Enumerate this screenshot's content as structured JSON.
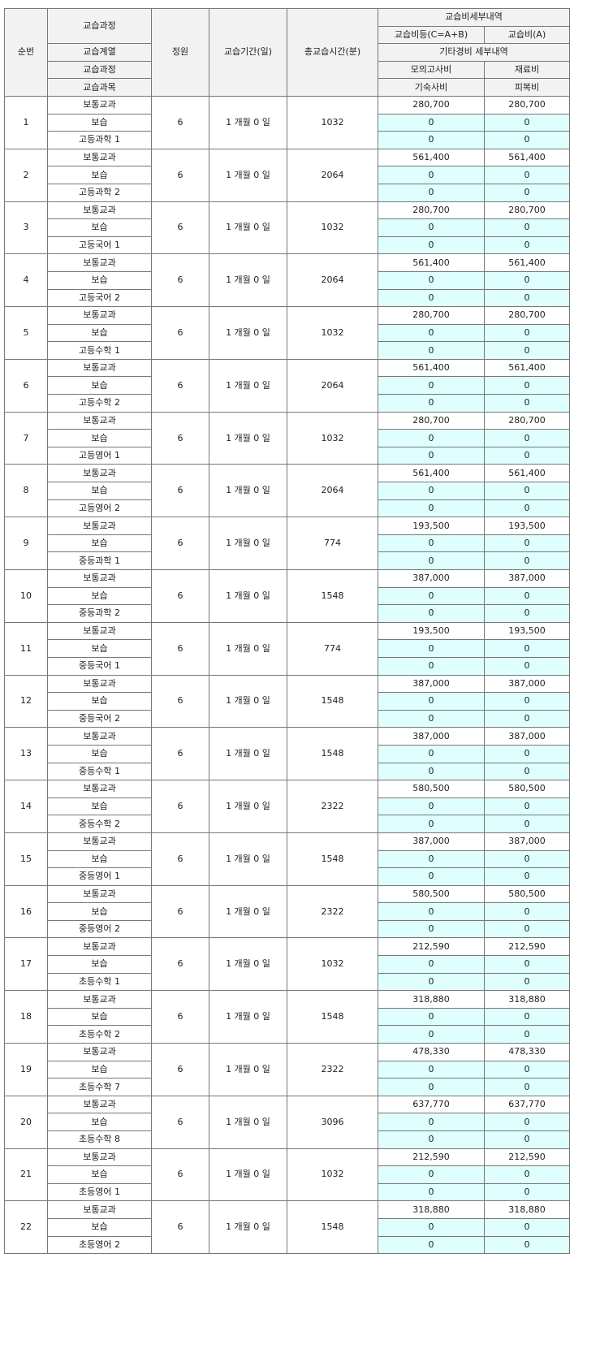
{
  "header": {
    "seq": "순번",
    "course": "교습과정",
    "capacity": "정원",
    "period": "교습기간(일)",
    "total_minutes": "총교습시간(분)",
    "fee_detail": "교습비세부내역",
    "fee_total": "교습비등(C=A+B)",
    "fee_a": "교습비(A)",
    "series": "교습계열",
    "other_detail": "기타경비 세부내역",
    "course2": "교습과정",
    "mock_exam": "모의고사비",
    "material": "재료비",
    "subject": "교습과목",
    "dorm": "기숙사비",
    "uniform": "피복비"
  },
  "colors": {
    "header_bg": "#f2f2f2",
    "zero_cell_bg": "#dfffff",
    "border": "#777777"
  },
  "rows": [
    {
      "no": "1",
      "series": "보통교과",
      "course": "보습",
      "subject": "고등과학 1",
      "cap": "6",
      "period": "1 개월 0 일",
      "minutes": "1032",
      "total": "280,700",
      "a": "280,700",
      "mock": "0",
      "mat": "0",
      "dorm": "0",
      "uni": "0"
    },
    {
      "no": "2",
      "series": "보통교과",
      "course": "보습",
      "subject": "고등과학 2",
      "cap": "6",
      "period": "1 개월 0 일",
      "minutes": "2064",
      "total": "561,400",
      "a": "561,400",
      "mock": "0",
      "mat": "0",
      "dorm": "0",
      "uni": "0"
    },
    {
      "no": "3",
      "series": "보통교과",
      "course": "보습",
      "subject": "고등국어 1",
      "cap": "6",
      "period": "1 개월 0 일",
      "minutes": "1032",
      "total": "280,700",
      "a": "280,700",
      "mock": "0",
      "mat": "0",
      "dorm": "0",
      "uni": "0"
    },
    {
      "no": "4",
      "series": "보통교과",
      "course": "보습",
      "subject": "고등국어 2",
      "cap": "6",
      "period": "1 개월 0 일",
      "minutes": "2064",
      "total": "561,400",
      "a": "561,400",
      "mock": "0",
      "mat": "0",
      "dorm": "0",
      "uni": "0"
    },
    {
      "no": "5",
      "series": "보통교과",
      "course": "보습",
      "subject": "고등수학 1",
      "cap": "6",
      "period": "1 개월 0 일",
      "minutes": "1032",
      "total": "280,700",
      "a": "280,700",
      "mock": "0",
      "mat": "0",
      "dorm": "0",
      "uni": "0"
    },
    {
      "no": "6",
      "series": "보통교과",
      "course": "보습",
      "subject": "고등수학 2",
      "cap": "6",
      "period": "1 개월 0 일",
      "minutes": "2064",
      "total": "561,400",
      "a": "561,400",
      "mock": "0",
      "mat": "0",
      "dorm": "0",
      "uni": "0"
    },
    {
      "no": "7",
      "series": "보통교과",
      "course": "보습",
      "subject": "고등영어 1",
      "cap": "6",
      "period": "1 개월 0 일",
      "minutes": "1032",
      "total": "280,700",
      "a": "280,700",
      "mock": "0",
      "mat": "0",
      "dorm": "0",
      "uni": "0"
    },
    {
      "no": "8",
      "series": "보통교과",
      "course": "보습",
      "subject": "고등영어 2",
      "cap": "6",
      "period": "1 개월 0 일",
      "minutes": "2064",
      "total": "561,400",
      "a": "561,400",
      "mock": "0",
      "mat": "0",
      "dorm": "0",
      "uni": "0"
    },
    {
      "no": "9",
      "series": "보통교과",
      "course": "보습",
      "subject": "중등과학 1",
      "cap": "6",
      "period": "1 개월 0 일",
      "minutes": "774",
      "total": "193,500",
      "a": "193,500",
      "mock": "0",
      "mat": "0",
      "dorm": "0",
      "uni": "0"
    },
    {
      "no": "10",
      "series": "보통교과",
      "course": "보습",
      "subject": "중등과학 2",
      "cap": "6",
      "period": "1 개월 0 일",
      "minutes": "1548",
      "total": "387,000",
      "a": "387,000",
      "mock": "0",
      "mat": "0",
      "dorm": "0",
      "uni": "0"
    },
    {
      "no": "11",
      "series": "보통교과",
      "course": "보습",
      "subject": "중등국어 1",
      "cap": "6",
      "period": "1 개월 0 일",
      "minutes": "774",
      "total": "193,500",
      "a": "193,500",
      "mock": "0",
      "mat": "0",
      "dorm": "0",
      "uni": "0"
    },
    {
      "no": "12",
      "series": "보통교과",
      "course": "보습",
      "subject": "중등국어 2",
      "cap": "6",
      "period": "1 개월 0 일",
      "minutes": "1548",
      "total": "387,000",
      "a": "387,000",
      "mock": "0",
      "mat": "0",
      "dorm": "0",
      "uni": "0"
    },
    {
      "no": "13",
      "series": "보통교과",
      "course": "보습",
      "subject": "중등수학 1",
      "cap": "6",
      "period": "1 개월 0 일",
      "minutes": "1548",
      "total": "387,000",
      "a": "387,000",
      "mock": "0",
      "mat": "0",
      "dorm": "0",
      "uni": "0"
    },
    {
      "no": "14",
      "series": "보통교과",
      "course": "보습",
      "subject": "중등수학 2",
      "cap": "6",
      "period": "1 개월 0 일",
      "minutes": "2322",
      "total": "580,500",
      "a": "580,500",
      "mock": "0",
      "mat": "0",
      "dorm": "0",
      "uni": "0"
    },
    {
      "no": "15",
      "series": "보통교과",
      "course": "보습",
      "subject": "중등영어 1",
      "cap": "6",
      "period": "1 개월 0 일",
      "minutes": "1548",
      "total": "387,000",
      "a": "387,000",
      "mock": "0",
      "mat": "0",
      "dorm": "0",
      "uni": "0"
    },
    {
      "no": "16",
      "series": "보통교과",
      "course": "보습",
      "subject": "중등영어 2",
      "cap": "6",
      "period": "1 개월 0 일",
      "minutes": "2322",
      "total": "580,500",
      "a": "580,500",
      "mock": "0",
      "mat": "0",
      "dorm": "0",
      "uni": "0"
    },
    {
      "no": "17",
      "series": "보통교과",
      "course": "보습",
      "subject": "초등수학 1",
      "cap": "6",
      "period": "1 개월 0 일",
      "minutes": "1032",
      "total": "212,590",
      "a": "212,590",
      "mock": "0",
      "mat": "0",
      "dorm": "0",
      "uni": "0"
    },
    {
      "no": "18",
      "series": "보통교과",
      "course": "보습",
      "subject": "초등수학 2",
      "cap": "6",
      "period": "1 개월 0 일",
      "minutes": "1548",
      "total": "318,880",
      "a": "318,880",
      "mock": "0",
      "mat": "0",
      "dorm": "0",
      "uni": "0"
    },
    {
      "no": "19",
      "series": "보통교과",
      "course": "보습",
      "subject": "초등수학 7",
      "cap": "6",
      "period": "1 개월 0 일",
      "minutes": "2322",
      "total": "478,330",
      "a": "478,330",
      "mock": "0",
      "mat": "0",
      "dorm": "0",
      "uni": "0"
    },
    {
      "no": "20",
      "series": "보통교과",
      "course": "보습",
      "subject": "초등수학 8",
      "cap": "6",
      "period": "1 개월 0 일",
      "minutes": "3096",
      "total": "637,770",
      "a": "637,770",
      "mock": "0",
      "mat": "0",
      "dorm": "0",
      "uni": "0"
    },
    {
      "no": "21",
      "series": "보통교과",
      "course": "보습",
      "subject": "초등영어 1",
      "cap": "6",
      "period": "1 개월 0 일",
      "minutes": "1032",
      "total": "212,590",
      "a": "212,590",
      "mock": "0",
      "mat": "0",
      "dorm": "0",
      "uni": "0"
    },
    {
      "no": "22",
      "series": "보통교과",
      "course": "보습",
      "subject": "초등영어 2",
      "cap": "6",
      "period": "1 개월 0 일",
      "minutes": "1548",
      "total": "318,880",
      "a": "318,880",
      "mock": "0",
      "mat": "0",
      "dorm": "0",
      "uni": "0"
    }
  ]
}
